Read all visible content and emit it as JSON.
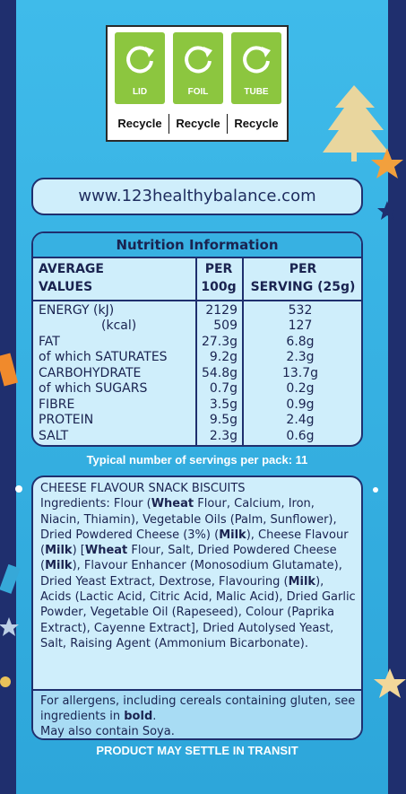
{
  "recycle": {
    "items": [
      {
        "label": "LID",
        "caption": "Recycle"
      },
      {
        "label": "FOIL",
        "caption": "Recycle"
      },
      {
        "label": "TUBE",
        "caption": "Recycle"
      }
    ],
    "green": "#8cc63f"
  },
  "website": "www.123healthybalance.com",
  "nutrition": {
    "title": "Nutrition Information",
    "header": {
      "col1_line1": "AVERAGE",
      "col1_line2": "VALUES",
      "col2_line1": "PER",
      "col2_line2": "100g",
      "col3_line1": "PER",
      "col3_line2": "SERVING (25g)"
    },
    "rows": [
      {
        "name": "ENERGY (kJ)",
        "per100": "2129",
        "serving": "532"
      },
      {
        "name": "(kcal)",
        "per100": "509",
        "serving": "127"
      },
      {
        "name": "FAT",
        "per100": "27.3g",
        "serving": "6.8g"
      },
      {
        "name": "of which SATURATES",
        "per100": "9.2g",
        "serving": "2.3g"
      },
      {
        "name": "CARBOHYDRATE",
        "per100": "54.8g",
        "serving": "13.7g"
      },
      {
        "name": "of which SUGARS",
        "per100": "0.7g",
        "serving": "0.2g"
      },
      {
        "name": "FIBRE",
        "per100": "3.5g",
        "serving": "0.9g"
      },
      {
        "name": "PROTEIN",
        "per100": "9.5g",
        "serving": "2.4g"
      },
      {
        "name": "SALT",
        "per100": "2.3g",
        "serving": "0.6g"
      }
    ]
  },
  "servings_text": "Typical number of servings per pack: 11",
  "ingredients": {
    "title": "CHEESE FLAVOUR SNACK BISCUITS",
    "t1": "Ingredients: Flour (",
    "b1": "Wheat",
    "t2": " Flour, Calcium, Iron, Niacin, Thiamin), Vegetable Oils (Palm, Sunflower), Dried Powdered Cheese (3%) (",
    "b2": "Milk",
    "t3": "), Cheese Flavour (",
    "b3": "Milk",
    "t4": ") [",
    "b4": "Wheat",
    "t5": " Flour, Salt, Dried Powdered Cheese (",
    "b5": "Milk",
    "t6": "), Flavour Enhancer (Monosodium Glutamate), Dried Yeast Extract, Dextrose, Flavouring (",
    "b6": "Milk",
    "t7": "), Acids (Lactic Acid, Citric Acid, Malic Acid), Dried Garlic Powder, Vegetable Oil (Rapeseed), Colour (Paprika Extract), Cayenne Extract], Dried Autolysed Yeast, Salt, Raising Agent (Ammonium Bicarbonate)."
  },
  "allergen": {
    "line1": "For allergens, including cereals containing gluten, see ingredients in ",
    "bold": "bold",
    "line1_end": ".",
    "line2": "May also contain Soya."
  },
  "footer": "PRODUCT MAY SETTLE IN TRANSIT"
}
